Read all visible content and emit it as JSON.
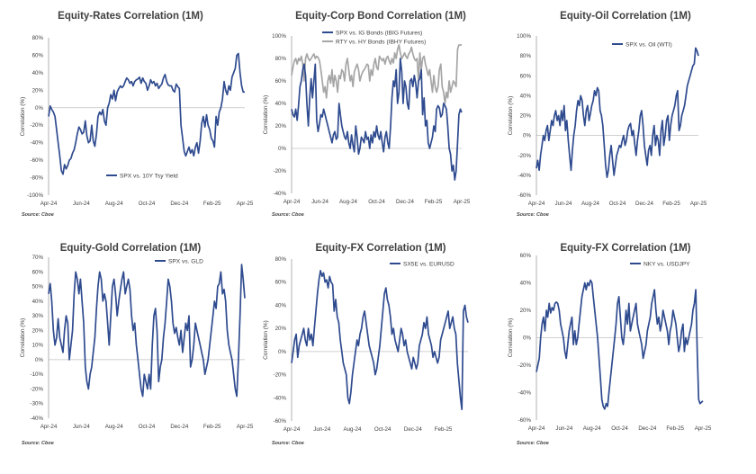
{
  "source_label": "Source: Cboe",
  "colors": {
    "blue": "#2f4b8f",
    "gray": "#a6a6a6",
    "axis": "#7f7f7f",
    "zero": "#c0c0c0",
    "text": "#404040"
  },
  "chart_data": [
    {
      "type": "line",
      "title": "Equity-Rates Correlation (1M)",
      "ylabel": "Correlation (%)",
      "ylim": [
        -100,
        80
      ],
      "yticks": [
        -100,
        -80,
        -60,
        -40,
        -20,
        0,
        20,
        40,
        60,
        80
      ],
      "x_tick_labels": [
        "Apr-24",
        "Jun-24",
        "Aug-24",
        "Oct-24",
        "Dec-24",
        "Feb-25",
        "Apr-25"
      ],
      "legend_position": "lower-center",
      "series": [
        {
          "name": "SPX vs. 10Y Tsy Yield",
          "color": "#2f4b8f",
          "values": [
            -10,
            2,
            -2,
            -5,
            -10,
            -25,
            -40,
            -55,
            -72,
            -76,
            -65,
            -70,
            -66,
            -60,
            -58,
            -52,
            -48,
            -40,
            -30,
            -22,
            -25,
            -30,
            -28,
            -15,
            -32,
            -40,
            -38,
            -20,
            -38,
            -44,
            -30,
            -10,
            -5,
            -8,
            -2,
            -15,
            -20,
            0,
            5,
            15,
            10,
            20,
            8,
            18,
            22,
            25,
            23,
            25,
            30,
            34,
            32,
            28,
            30,
            25,
            30,
            32,
            33,
            35,
            28,
            34,
            30,
            28,
            20,
            25,
            32,
            28,
            30,
            25,
            28,
            22,
            25,
            27,
            34,
            38,
            30,
            26,
            25,
            25,
            20,
            18,
            27,
            24,
            22,
            -20,
            -35,
            -50,
            -55,
            -50,
            -45,
            -52,
            -48,
            -55,
            -45,
            -40,
            -52,
            -38,
            -18,
            -10,
            -22,
            -8,
            -20,
            -25,
            -35,
            -38,
            -45,
            -10,
            -20,
            -5,
            0,
            10,
            30,
            20,
            15,
            25,
            20,
            35,
            40,
            45,
            60,
            62,
            40,
            25,
            18,
            18
          ]
        }
      ]
    },
    {
      "type": "line",
      "title": "Equity-Corp Bond Correlation (1M)",
      "ylabel": "Correlation (%)",
      "ylim": [
        -40,
        100
      ],
      "yticks": [
        -40,
        -20,
        0,
        20,
        40,
        60,
        80,
        100
      ],
      "x_tick_labels": [
        "Apr-24",
        "Jun-24",
        "Aug-24",
        "Oct-24",
        "Dec-24",
        "Feb-25",
        "Apr-25"
      ],
      "legend_position": "top-center",
      "series": [
        {
          "name": "SPX vs. IG Bonds (IBIG Futures)",
          "color": "#2f4b8f",
          "values": [
            35,
            30,
            28,
            35,
            25,
            38,
            55,
            60,
            70,
            75,
            65,
            40,
            20,
            45,
            62,
            45,
            60,
            75,
            25,
            15,
            22,
            30,
            28,
            35,
            30,
            25,
            20,
            15,
            10,
            5,
            12,
            15,
            8,
            10,
            40,
            30,
            20,
            15,
            10,
            8,
            15,
            5,
            0,
            12,
            3,
            -3,
            20,
            10,
            -5,
            0,
            10,
            8,
            5,
            15,
            8,
            10,
            0,
            12,
            5,
            15,
            10,
            20,
            12,
            8,
            15,
            5,
            -3,
            10,
            15,
            5,
            0,
            20,
            45,
            60,
            55,
            70,
            40,
            50,
            80,
            68,
            40,
            60,
            55,
            40,
            35,
            60,
            62,
            55,
            65,
            58,
            45,
            60,
            62,
            70,
            30,
            45,
            20,
            25,
            5,
            0,
            5,
            10,
            20,
            15,
            35,
            38,
            36,
            28,
            30,
            40,
            38,
            35,
            20,
            0,
            -5,
            -20,
            -15,
            -28,
            -20,
            5,
            30,
            35,
            32
          ]
        },
        {
          "name": "RTY vs. HY Bonds (IBHY Futures)",
          "color": "#a6a6a6",
          "values": [
            65,
            72,
            78,
            80,
            75,
            80,
            78,
            82,
            75,
            60,
            80,
            84,
            80,
            78,
            80,
            82,
            84,
            80,
            82,
            81,
            78,
            70,
            60,
            50,
            55,
            45,
            60,
            65,
            58,
            70,
            55,
            65,
            60,
            50,
            65,
            62,
            70,
            68,
            60,
            75,
            80,
            70,
            60,
            65,
            55,
            68,
            72,
            75,
            70,
            60,
            65,
            68,
            70,
            72,
            75,
            74,
            60,
            70,
            65,
            75,
            80,
            72,
            70,
            82,
            80,
            78,
            80,
            75,
            80,
            82,
            78,
            75,
            80,
            76,
            85,
            80,
            88,
            92,
            85,
            80,
            82,
            85,
            82,
            80,
            84,
            86,
            90,
            84,
            80,
            78,
            80,
            60,
            85,
            70,
            80,
            82,
            75,
            70,
            65,
            70,
            60,
            50,
            65,
            55,
            50,
            55,
            70,
            75,
            55,
            50,
            40,
            50,
            45,
            60,
            50,
            55,
            60,
            58,
            55,
            88,
            92,
            92,
            92
          ]
        }
      ]
    },
    {
      "type": "line",
      "title": "Equity-Oil Correlation (1M)",
      "ylabel": "Correlation (%)",
      "ylim": [
        -60,
        100
      ],
      "yticks": [
        -60,
        -40,
        -20,
        0,
        20,
        40,
        60,
        80,
        100
      ],
      "x_tick_labels": [
        "Apr-24",
        "Jun-24",
        "Aug-24",
        "Oct-24",
        "Dec-24",
        "Feb-25",
        "Apr-25"
      ],
      "legend_position": "top-right",
      "series": [
        {
          "name": "SPX vs. Oil (WTI)",
          "color": "#2f4b8f",
          "values": [
            -33,
            -25,
            -35,
            -20,
            -10,
            0,
            -5,
            5,
            10,
            -5,
            5,
            15,
            10,
            20,
            25,
            15,
            20,
            10,
            25,
            15,
            30,
            5,
            15,
            -5,
            -20,
            -35,
            -15,
            0,
            10,
            25,
            35,
            30,
            40,
            35,
            20,
            10,
            25,
            30,
            15,
            22,
            30,
            35,
            45,
            40,
            48,
            45,
            25,
            20,
            10,
            -10,
            -30,
            -42,
            -35,
            -20,
            -10,
            -25,
            -40,
            -30,
            -20,
            -15,
            -10,
            -12,
            -5,
            0,
            -10,
            -5,
            5,
            10,
            12,
            0,
            5,
            -8,
            -20,
            -5,
            5,
            20,
            25,
            10,
            -10,
            -20,
            -30,
            -15,
            -10,
            -20,
            0,
            10,
            -10,
            0,
            -5,
            -20,
            5,
            15,
            -10,
            0,
            15,
            20,
            -5,
            10,
            20,
            25,
            30,
            40,
            45,
            5,
            10,
            20,
            25,
            30,
            40,
            50,
            55,
            60,
            65,
            70,
            72,
            88,
            85,
            80
          ]
        }
      ]
    },
    {
      "type": "line",
      "title": "Equity-Gold Correlation (1M)",
      "ylabel": "Correlation (%)",
      "ylim": [
        -40,
        70
      ],
      "yticks": [
        -40,
        -30,
        -20,
        -10,
        0,
        10,
        20,
        30,
        40,
        50,
        60,
        70
      ],
      "x_tick_labels": [
        "Apr-24",
        "Jun-24",
        "Aug-24",
        "Oct-24",
        "Dec-24",
        "Feb-25",
        "Apr-25"
      ],
      "legend_position": "top-center",
      "series": [
        {
          "name": "SPX vs. GLD",
          "color": "#2f4b8f",
          "values": [
            45,
            52,
            40,
            20,
            10,
            15,
            28,
            15,
            10,
            5,
            20,
            30,
            25,
            0,
            10,
            20,
            45,
            60,
            55,
            45,
            55,
            40,
            25,
            -5,
            -15,
            -20,
            -10,
            -5,
            5,
            15,
            35,
            50,
            60,
            55,
            40,
            45,
            40,
            25,
            10,
            30,
            50,
            55,
            45,
            30,
            40,
            48,
            55,
            60,
            45,
            50,
            55,
            48,
            30,
            20,
            25,
            10,
            0,
            -10,
            -20,
            -25,
            -10,
            -15,
            -20,
            -10,
            -20,
            10,
            30,
            35,
            20,
            -15,
            -5,
            0,
            15,
            25,
            40,
            55,
            50,
            40,
            25,
            18,
            22,
            15,
            10,
            20,
            5,
            15,
            25,
            20,
            30,
            -5,
            0,
            10,
            25,
            20,
            15,
            10,
            5,
            0,
            -10,
            -5,
            0,
            10,
            20,
            30,
            40,
            35,
            50,
            52,
            60,
            45,
            48,
            40,
            20,
            10,
            5,
            0,
            -10,
            -20,
            -25,
            0,
            30,
            65,
            55,
            42
          ]
        }
      ]
    },
    {
      "type": "line",
      "title": "Equity-FX Correlation (1M)",
      "ylabel": "Correlation (%)",
      "ylim": [
        -60,
        80
      ],
      "yticks": [
        -60,
        -40,
        -20,
        0,
        20,
        40,
        60,
        80
      ],
      "x_tick_labels": [
        "Apr-24",
        "Jun-24",
        "Aug-24",
        "Oct-24",
        "Dec-24",
        "Feb-25"
      ],
      "legend_position": "top-right",
      "series": [
        {
          "name": "SX5E vs. EURUSD",
          "color": "#2f4b8f",
          "values": [
            -10,
            0,
            10,
            15,
            -5,
            5,
            10,
            15,
            20,
            10,
            5,
            20,
            10,
            15,
            5,
            20,
            35,
            50,
            62,
            70,
            65,
            68,
            60,
            62,
            55,
            65,
            60,
            58,
            35,
            45,
            30,
            25,
            10,
            0,
            -10,
            -15,
            -20,
            -40,
            -45,
            -35,
            -20,
            -10,
            0,
            10,
            5,
            15,
            20,
            30,
            35,
            25,
            15,
            5,
            0,
            -5,
            -10,
            -20,
            -15,
            -5,
            5,
            20,
            35,
            50,
            55,
            45,
            40,
            30,
            15,
            20,
            10,
            5,
            0,
            10,
            20,
            15,
            5,
            10,
            0,
            -5,
            -10,
            -15,
            -5,
            -10,
            -15,
            -10,
            5,
            10,
            15,
            25,
            20,
            30,
            15,
            10,
            5,
            -5,
            0,
            -5,
            -10,
            -5,
            10,
            15,
            20,
            25,
            30,
            35,
            20,
            25,
            30,
            20,
            15,
            -10,
            -25,
            -40,
            -50,
            35,
            40,
            30,
            25
          ]
        }
      ]
    },
    {
      "type": "line",
      "title": "Equity-FX Correlation (1M)",
      "ylabel": "Correlation (%)",
      "ylim": [
        -60,
        60
      ],
      "yticks": [
        -60,
        -40,
        -20,
        0,
        20,
        40,
        60
      ],
      "x_tick_labels": [
        "Apr-24",
        "Jun-24",
        "Aug-24",
        "Oct-24",
        "Dec-24",
        "Feb-25",
        "Apr-25"
      ],
      "legend_position": "top-right",
      "series": [
        {
          "name": "NKY vs. USDJPY",
          "color": "#2f4b8f",
          "values": [
            -25,
            -20,
            -15,
            0,
            10,
            15,
            5,
            20,
            15,
            25,
            18,
            22,
            20,
            25,
            26,
            25,
            20,
            10,
            5,
            0,
            -10,
            -15,
            -5,
            5,
            10,
            15,
            -5,
            5,
            -5,
            0,
            10,
            20,
            30,
            35,
            40,
            35,
            40,
            38,
            42,
            40,
            30,
            20,
            10,
            0,
            -15,
            -30,
            -45,
            -50,
            -52,
            -48,
            -50,
            -40,
            -30,
            -20,
            -10,
            0,
            10,
            25,
            30,
            15,
            0,
            -5,
            5,
            20,
            10,
            25,
            5,
            10,
            15,
            20,
            25,
            10,
            5,
            0,
            -5,
            -15,
            -10,
            -5,
            5,
            10,
            15,
            25,
            30,
            35,
            20,
            10,
            15,
            5,
            10,
            20,
            15,
            10,
            5,
            -5,
            5,
            10,
            20,
            15,
            10,
            0,
            -10,
            -5,
            5,
            10,
            -10,
            0,
            -5,
            0,
            5,
            10,
            20,
            25,
            35,
            -10,
            -45,
            -48,
            -47,
            -46
          ]
        }
      ]
    }
  ]
}
